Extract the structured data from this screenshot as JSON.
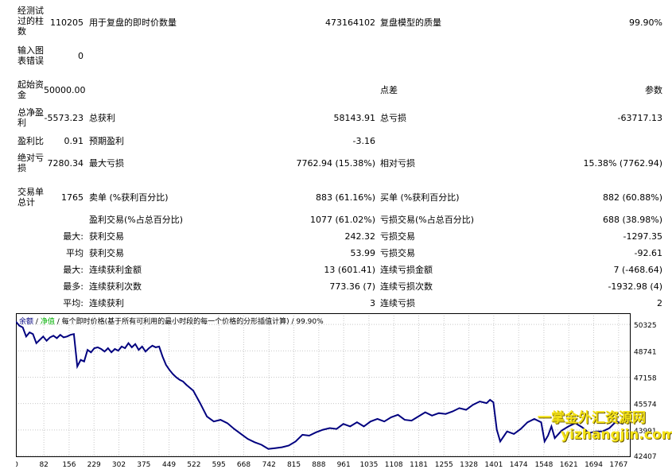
{
  "report": {
    "bars_label": "经测试过的柱数",
    "bars_value": "110205",
    "ticks_label": "用于复盘的即时价数量",
    "ticks_value": "473164102",
    "quality_label": "复盘模型的质量",
    "quality_value": "99.90%",
    "errors_label": "输入图表错误",
    "errors_value": "0",
    "deposit_label": "起始资金",
    "deposit_value": "50000.00",
    "spread_label": "点差",
    "spread_value": "参数",
    "net_profit_label": "总净盈利",
    "net_profit_value": "-5573.23",
    "gross_profit_label": "总获利",
    "gross_profit_value": "58143.91",
    "gross_loss_label": "总亏损",
    "gross_loss_value": "-63717.13",
    "profit_factor_label": "盈利比",
    "profit_factor_value": "0.91",
    "expected_label": "预期盈利",
    "expected_value": "-3.16",
    "abs_dd_label": "绝对亏损",
    "abs_dd_value": "7280.34",
    "max_dd_label": "最大亏损",
    "max_dd_value": "7762.94 (15.38%)",
    "rel_dd_label": "相对亏损",
    "rel_dd_value": "15.38% (7762.94)",
    "trades_label": "交易单总计",
    "trades_value": "1765",
    "short_label": "卖单 (%获利百分比)",
    "short_value": "883 (61.16%)",
    "long_label": "买单 (%获利百分比)",
    "long_value": "882 (60.88%)",
    "profit_trades_label": "盈利交易(%占总百分比)",
    "profit_trades_value": "1077 (61.02%)",
    "loss_trades_label": "亏损交易(%占总百分比)",
    "loss_trades_value": "688 (38.98%)",
    "largest_prefix": "最大:",
    "largest_profit_label": "获利交易",
    "largest_profit_value": "242.32",
    "largest_loss_label": "亏损交易",
    "largest_loss_value": "-1297.35",
    "average_prefix": "平均",
    "average_profit_label": "获利交易",
    "average_profit_value": "53.99",
    "average_loss_label": "亏损交易",
    "average_loss_value": "-92.61",
    "max_cons_prefix": "最大:",
    "max_cons_wins_label": "连续获利金额",
    "max_cons_wins_value": "13 (601.41)",
    "max_cons_losses_label": "连续亏损金额",
    "max_cons_losses_value": "7 (-468.64)",
    "maximal_prefix": "最多:",
    "maximal_cons_profit_label": "连续获利次数",
    "maximal_cons_profit_value": "773.36 (7)",
    "maximal_cons_loss_label": "连续亏损次数",
    "maximal_cons_loss_value": "-1932.98 (4)",
    "avg_cons_prefix": "平均:",
    "avg_cons_wins_label": "连续获利",
    "avg_cons_wins_value": "3",
    "avg_cons_losses_label": "连续亏损",
    "avg_cons_losses_value": "2"
  },
  "chart_header": {
    "balance_label": "余额",
    "separator": "/",
    "equity_label": "净值",
    "description": "/ 每个即时价格(基于所有可利用的最小时段的每一个价格的分形插值计算) / 99.90%"
  },
  "watermark": {
    "cn": "一掌金外汇资源网",
    "url": "yizhangjin.com"
  },
  "colors": {
    "balance_line": "#00007f",
    "equity_line": "#00b000",
    "grid": "#c8c8c8",
    "watermark": "#f5e316"
  },
  "chart_data": {
    "type": "line",
    "x_ticks": [
      "0",
      "82",
      "156",
      "229",
      "302",
      "375",
      "449",
      "522",
      "595",
      "668",
      "742",
      "815",
      "888",
      "961",
      "1035",
      "1108",
      "1181",
      "1255",
      "1328",
      "1401",
      "1474",
      "1548",
      "1621",
      "1694",
      "1767"
    ],
    "y_ticks": [
      "50325",
      "48741",
      "47158",
      "45574",
      "43991",
      "42407"
    ],
    "ylim": [
      42407,
      51000
    ],
    "xlim": [
      0,
      1800
    ],
    "series": [
      {
        "name": "余额",
        "x": [
          0,
          10,
          20,
          30,
          40,
          50,
          60,
          70,
          80,
          90,
          100,
          110,
          120,
          130,
          140,
          150,
          160,
          170,
          180,
          190,
          200,
          210,
          220,
          230,
          240,
          250,
          260,
          270,
          280,
          290,
          300,
          310,
          320,
          330,
          340,
          350,
          360,
          370,
          380,
          390,
          400,
          410,
          420,
          430,
          440,
          450,
          460,
          470,
          480,
          490,
          500,
          520,
          540,
          560,
          580,
          600,
          620,
          640,
          660,
          680,
          700,
          720,
          740,
          760,
          780,
          800,
          820,
          840,
          860,
          880,
          900,
          920,
          940,
          960,
          980,
          1000,
          1020,
          1040,
          1060,
          1080,
          1100,
          1120,
          1140,
          1160,
          1180,
          1200,
          1220,
          1240,
          1260,
          1280,
          1300,
          1320,
          1340,
          1360,
          1380,
          1390,
          1400,
          1410,
          1420,
          1440,
          1460,
          1480,
          1500,
          1520,
          1540,
          1550,
          1560,
          1570,
          1580,
          1600,
          1620,
          1640,
          1660,
          1680,
          1700,
          1720,
          1740,
          1760,
          1780
        ],
        "values": [
          50500,
          50250,
          50150,
          49600,
          49850,
          49750,
          49200,
          49400,
          49600,
          49350,
          49550,
          49650,
          49500,
          49700,
          49550,
          49600,
          49700,
          49750,
          47800,
          48200,
          48100,
          48800,
          48650,
          48900,
          48950,
          48850,
          48700,
          48900,
          48650,
          48850,
          48750,
          49000,
          48900,
          49200,
          48950,
          49150,
          48800,
          49000,
          48700,
          48900,
          49050,
          48950,
          49000,
          48400,
          47900,
          47600,
          47350,
          47150,
          47000,
          46900,
          46700,
          46350,
          45600,
          44800,
          44500,
          44600,
          44400,
          44050,
          43750,
          43450,
          43250,
          43100,
          42850,
          42900,
          42950,
          43050,
          43300,
          43700,
          43650,
          43850,
          44000,
          44100,
          44050,
          44350,
          44200,
          44450,
          44200,
          44500,
          44650,
          44500,
          44750,
          44900,
          44600,
          44550,
          44800,
          45050,
          44850,
          45000,
          44950,
          45100,
          45300,
          45200,
          45500,
          45700,
          45600,
          45800,
          45650,
          44000,
          43300,
          43900,
          43750,
          44050,
          44450,
          44650,
          44450,
          43300,
          43650,
          44200,
          43500,
          43950,
          44200,
          44400,
          44150,
          43800,
          43900,
          43900,
          44100,
          44500,
          44350
        ]
      }
    ]
  }
}
